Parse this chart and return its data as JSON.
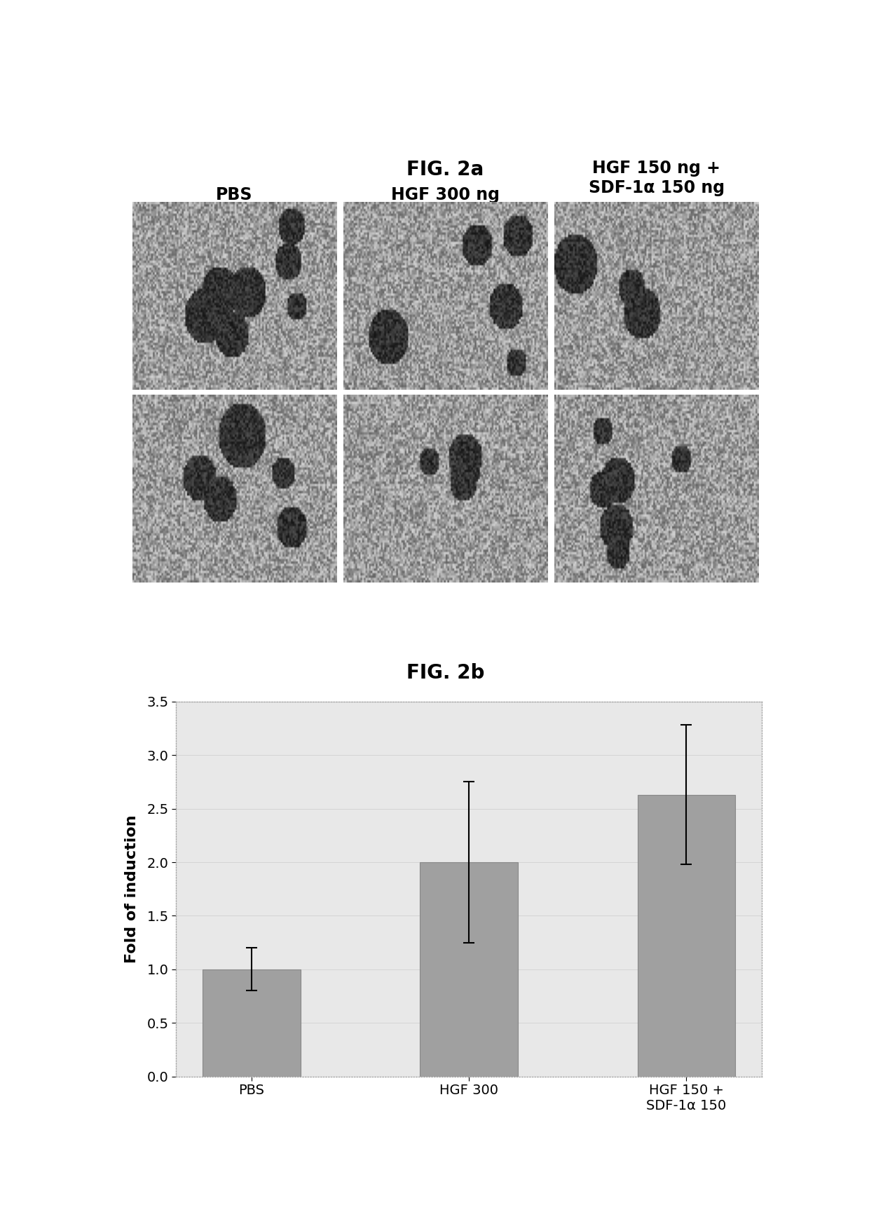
{
  "fig2a_title": "FIG. 2a",
  "fig2b_title": "FIG. 2b",
  "col_labels": [
    "PBS",
    "HGF 300 ng",
    "HGF 150 ng +\nSDF-1α 150 ng"
  ],
  "bar_categories": [
    "PBS",
    "HGF 300",
    "HGF 150 +\nSDF-1α 150"
  ],
  "bar_values": [
    1.0,
    2.0,
    2.63
  ],
  "bar_errors": [
    0.2,
    0.75,
    0.65
  ],
  "bar_color": "#a0a0a0",
  "bar_error_color": "#000000",
  "ylabel": "Fold of induction",
  "ylim": [
    0,
    3.5
  ],
  "yticks": [
    0,
    0.5,
    1.0,
    1.5,
    2.0,
    2.5,
    3.0,
    3.5
  ],
  "title_fontsize": 20,
  "label_fontsize": 16,
  "tick_fontsize": 14,
  "bar_width": 0.45,
  "background_color": "#ffffff",
  "image_bg_color": "#b0b0b0",
  "fig_width": 12.4,
  "fig_height": 17.39
}
